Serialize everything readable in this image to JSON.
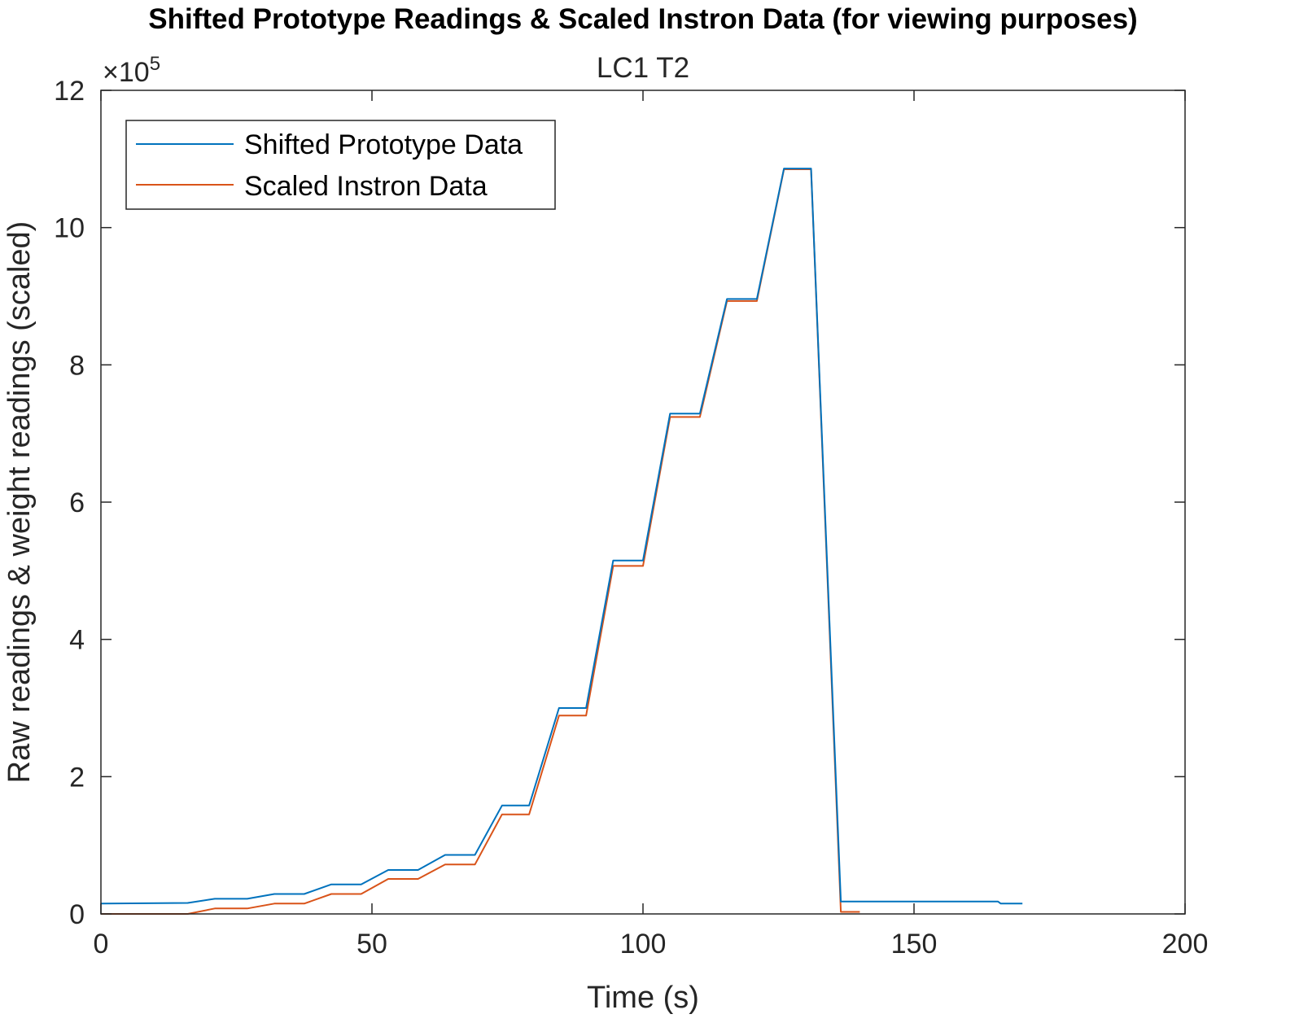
{
  "chart_data": {
    "type": "line",
    "title": "Shifted Prototype Readings & Scaled Instron Data (for viewing purposes)",
    "subtitle": "LC1 T2",
    "xlabel": "Time (s)",
    "ylabel": "Raw readings & weight readings (scaled)",
    "xlim": [
      0,
      200
    ],
    "ylim": [
      0,
      1200000
    ],
    "y_exponent": {
      "base": "×10",
      "power": "5"
    },
    "x_ticks": [
      0,
      50,
      100,
      150,
      200
    ],
    "x_tick_labels": [
      "0",
      "50",
      "100",
      "150",
      "200"
    ],
    "y_ticks": [
      0,
      200000,
      400000,
      600000,
      800000,
      1000000,
      1200000
    ],
    "y_tick_labels": [
      "0",
      "2",
      "4",
      "6",
      "8",
      "10",
      "12"
    ],
    "grid": false,
    "legend_position": "top-left",
    "series": [
      {
        "name": "Shifted Prototype Data",
        "color": "#0072BD",
        "x": [
          0,
          16,
          21,
          27,
          32,
          37.5,
          42.5,
          48,
          53,
          58.5,
          63.5,
          69,
          74,
          79,
          84.5,
          89.5,
          94.5,
          100,
          105,
          110.5,
          115.5,
          121,
          126,
          131,
          136.5,
          165.5,
          166,
          170
        ],
        "y": [
          15000,
          16000,
          22000,
          22000,
          29000,
          29000,
          43000,
          43000,
          64000,
          64000,
          86000,
          86000,
          158000,
          158000,
          300000,
          300000,
          515000,
          515000,
          729000,
          729000,
          896000,
          896000,
          1086000,
          1086000,
          18000,
          18000,
          15000,
          15000
        ]
      },
      {
        "name": "Scaled Instron Data",
        "color": "#D95319",
        "x": [
          0,
          16,
          21,
          27,
          32,
          37.5,
          42.5,
          48,
          53,
          58.5,
          63.5,
          69,
          74,
          79,
          84.5,
          89.5,
          94.5,
          100,
          105,
          110.5,
          115.5,
          121,
          126,
          131,
          136.5,
          140
        ],
        "y": [
          0,
          0,
          8000,
          8000,
          15000,
          15000,
          29000,
          29000,
          51000,
          51000,
          72000,
          72000,
          145000,
          145000,
          289000,
          289000,
          507000,
          507000,
          724000,
          724000,
          893000,
          893000,
          1085000,
          1085000,
          3000,
          3000
        ]
      }
    ]
  }
}
